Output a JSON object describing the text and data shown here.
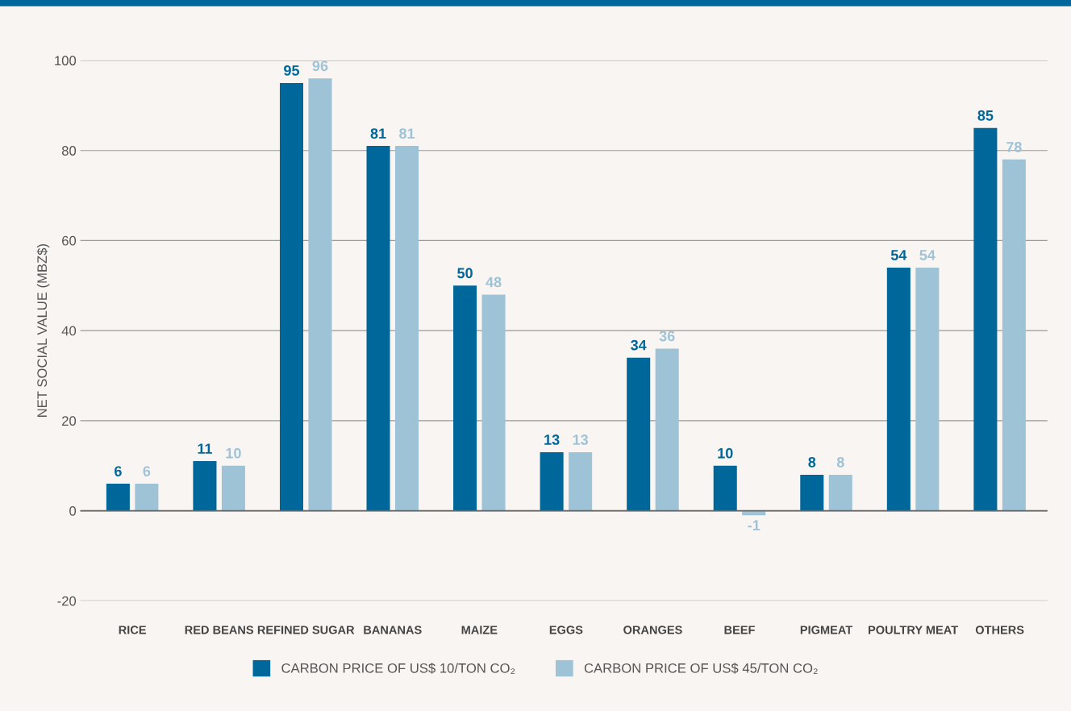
{
  "chart_data": {
    "type": "bar",
    "ylabel": "NET SOCIAL VALUE (MBZ$)",
    "categories": [
      "RICE",
      "RED BEANS",
      "REFINED SUGAR",
      "BANANAS",
      "MAIZE",
      "EGGS",
      "ORANGES",
      "BEEF",
      "PIGMEAT",
      "POULTRY MEAT",
      "OTHERS"
    ],
    "series": [
      {
        "name": "CARBON PRICE OF US$ 10/TON CO₂",
        "color": "#00679a",
        "values": [
          6,
          11,
          95,
          81,
          50,
          13,
          34,
          10,
          8,
          54,
          85
        ]
      },
      {
        "name": "CARBON PRICE OF US$ 45/TON CO₂",
        "color": "#9fc3d6",
        "values": [
          6,
          10,
          96,
          81,
          48,
          13,
          36,
          -1,
          8,
          54,
          78
        ]
      }
    ],
    "ylim": [
      -20,
      100
    ],
    "yticks": [
      -20,
      0,
      20,
      40,
      60,
      80,
      100
    ],
    "grid": "y",
    "legend": "bottom",
    "data_labels": true
  }
}
